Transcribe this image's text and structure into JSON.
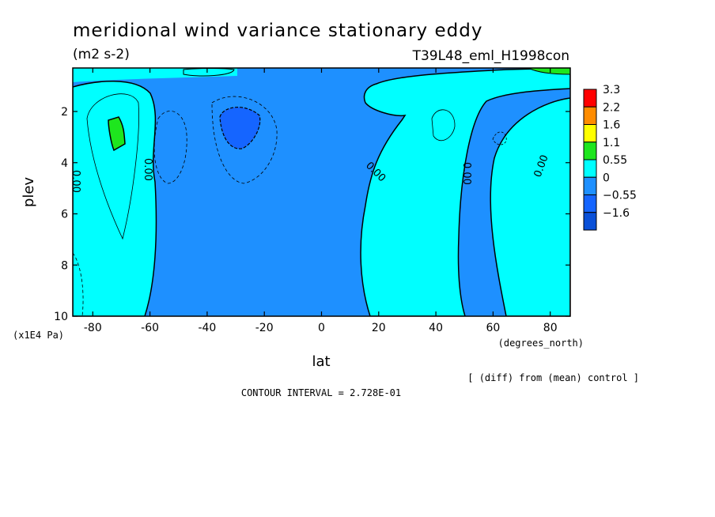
{
  "chart_data": {
    "type": "contour",
    "title": "meridional wind variance  stationary eddy",
    "units": "(m2 s-2)",
    "experiment": "T39L48_eml_H1998con",
    "xlabel": "lat",
    "xunits": "(degrees_north)",
    "ylabel": "plev",
    "yunits": "(x1E4 Pa)",
    "xlim": [
      -87,
      87
    ],
    "ylim": [
      10,
      0.3
    ],
    "xticks": [
      -80,
      -60,
      -40,
      -20,
      0,
      20,
      40,
      60,
      80
    ],
    "xtick_labels": [
      "-80",
      "-60",
      "-40",
      "-20",
      "0",
      "20",
      "40",
      "60",
      "80"
    ],
    "yticks": [
      2,
      4,
      6,
      8,
      10
    ],
    "ytick_labels": [
      "2",
      "4",
      "6",
      "8",
      "10"
    ],
    "contour_interval_label": "CONTOUR INTERVAL = 2.728E-01",
    "note": "[ (diff) from (mean) control ]",
    "zero_contour_labels": [
      "0.00",
      "0.00",
      "0.00",
      "0.00",
      "0.00"
    ],
    "colorbar": {
      "levels": [
        "3.3",
        "2.2",
        "1.6",
        "1.1",
        "0.55",
        "0",
        "−0.55",
        "−1.6"
      ],
      "colors": [
        "#ff0000",
        "#ff8c00",
        "#ffff00",
        "#1ee61e",
        "#00ffff",
        "#1e90ff",
        "#1565ff",
        "#0a50d8"
      ]
    },
    "regions": [
      {
        "name": "positive-band-southern-high-latitudes",
        "lat_range": [
          -87,
          -60
        ],
        "sign": "positive",
        "max_approx": 0.8
      },
      {
        "name": "negative-center-midlatitude-south",
        "lat_range": [
          -38,
          -18
        ],
        "plev_range": [
          1.5,
          3.5
        ],
        "sign": "negative",
        "min_approx": -0.8
      },
      {
        "name": "positive-tropics-north",
        "lat_range": [
          12,
          50
        ],
        "sign": "positive"
      },
      {
        "name": "positive-northern-high-latitudes",
        "lat_range": [
          53,
          87
        ],
        "sign": "positive"
      }
    ]
  }
}
